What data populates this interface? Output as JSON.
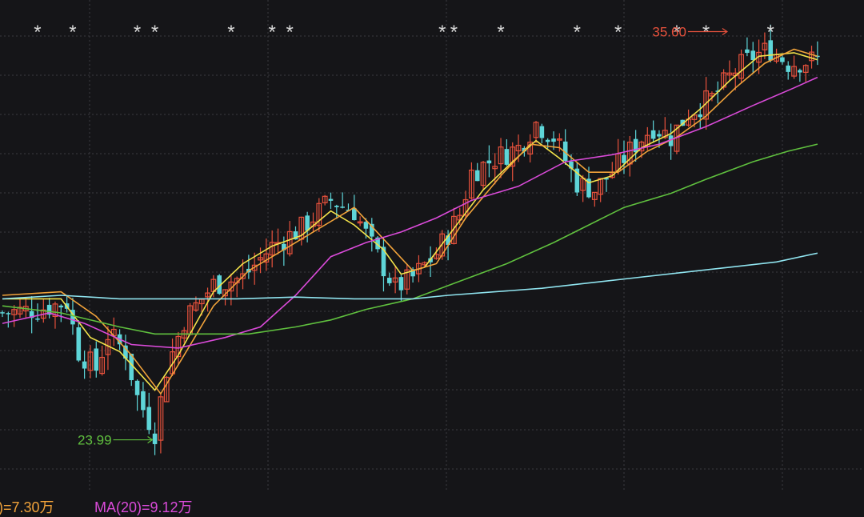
{
  "chart_data": {
    "type": "candlestick",
    "y_range": [
      22.5,
      36.5
    ],
    "grid": "dotted",
    "bar_count": 140,
    "colors": {
      "up": "#e6513c",
      "down": "#5ed5d8",
      "ma_yellow": "#f2e24a",
      "ma_orange": "#f0a23a",
      "ma_magenta": "#d94ad8",
      "ma_green": "#5fbf3e",
      "ma_cyan": "#8fe3ee",
      "star": "#d8d8d8",
      "high_label": "#e6513c",
      "low_label": "#5fbf3e"
    },
    "close_anchors": [
      [
        0,
        27.6
      ],
      [
        6,
        27.7
      ],
      [
        11,
        27.9
      ],
      [
        13,
        26.5
      ],
      [
        16,
        26.0
      ],
      [
        18,
        27.0
      ],
      [
        21,
        26.5
      ],
      [
        23,
        25.2
      ],
      [
        26,
        24.2
      ],
      [
        28,
        26.0
      ],
      [
        31,
        27.4
      ],
      [
        36,
        28.4
      ],
      [
        41,
        28.6
      ],
      [
        46,
        29.5
      ],
      [
        51,
        30.0
      ],
      [
        56,
        30.8
      ],
      [
        60,
        30.5
      ],
      [
        63,
        29.5
      ],
      [
        67,
        28.3
      ],
      [
        70,
        28.6
      ],
      [
        74,
        29.3
      ],
      [
        78,
        30.4
      ],
      [
        80,
        31.6
      ],
      [
        84,
        32.0
      ],
      [
        88,
        32.3
      ],
      [
        91,
        33.0
      ],
      [
        94,
        32.6
      ],
      [
        98,
        31.3
      ],
      [
        101,
        31.1
      ],
      [
        104,
        31.6
      ],
      [
        108,
        32.4
      ],
      [
        111,
        32.9
      ],
      [
        114,
        32.6
      ],
      [
        117,
        33.3
      ],
      [
        121,
        33.7
      ],
      [
        125,
        34.5
      ],
      [
        128,
        34.9
      ],
      [
        131,
        35.1
      ],
      [
        134,
        34.7
      ],
      [
        139,
        34.8
      ]
    ],
    "ma_lines": [
      {
        "color_key": "ma_yellow",
        "points": [
          [
            0,
            28.0
          ],
          [
            10,
            28.0
          ],
          [
            15,
            26.9
          ],
          [
            20,
            26.5
          ],
          [
            26,
            25.4
          ],
          [
            30,
            26.4
          ],
          [
            36,
            28.2
          ],
          [
            41,
            29.0
          ],
          [
            46,
            29.5
          ],
          [
            51,
            29.8
          ],
          [
            56,
            30.5
          ],
          [
            60,
            30.1
          ],
          [
            65,
            29.4
          ],
          [
            68,
            28.7
          ],
          [
            72,
            28.9
          ],
          [
            77,
            30.0
          ],
          [
            82,
            31.1
          ],
          [
            87,
            31.9
          ],
          [
            91,
            32.5
          ],
          [
            95,
            32.0
          ],
          [
            100,
            31.3
          ],
          [
            104,
            31.5
          ],
          [
            109,
            32.3
          ],
          [
            114,
            32.7
          ],
          [
            119,
            33.4
          ],
          [
            124,
            34.2
          ],
          [
            129,
            34.9
          ],
          [
            135,
            35.0
          ],
          [
            139,
            34.8
          ]
        ]
      },
      {
        "color_key": "ma_orange",
        "points": [
          [
            0,
            28.1
          ],
          [
            10,
            28.2
          ],
          [
            16,
            27.5
          ],
          [
            22,
            26.4
          ],
          [
            27,
            25.3
          ],
          [
            31,
            26.4
          ],
          [
            36,
            27.8
          ],
          [
            42,
            28.8
          ],
          [
            48,
            29.4
          ],
          [
            54,
            30.0
          ],
          [
            60,
            30.6
          ],
          [
            65,
            29.7
          ],
          [
            70,
            28.8
          ],
          [
            74,
            29.0
          ],
          [
            79,
            30.3
          ],
          [
            85,
            31.5
          ],
          [
            90,
            32.4
          ],
          [
            95,
            32.3
          ],
          [
            100,
            31.6
          ],
          [
            105,
            31.6
          ],
          [
            110,
            32.2
          ],
          [
            115,
            32.6
          ],
          [
            120,
            33.2
          ],
          [
            125,
            34.0
          ],
          [
            130,
            34.7
          ],
          [
            135,
            35.1
          ],
          [
            139,
            34.9
          ]
        ]
      },
      {
        "color_key": "ma_magenta",
        "points": [
          [
            0,
            27.3
          ],
          [
            8,
            27.6
          ],
          [
            14,
            27.3
          ],
          [
            22,
            26.7
          ],
          [
            30,
            26.6
          ],
          [
            38,
            26.9
          ],
          [
            44,
            27.2
          ],
          [
            50,
            28.1
          ],
          [
            56,
            29.2
          ],
          [
            62,
            29.6
          ],
          [
            68,
            29.9
          ],
          [
            74,
            30.3
          ],
          [
            80,
            30.8
          ],
          [
            88,
            31.2
          ],
          [
            96,
            31.9
          ],
          [
            104,
            32.1
          ],
          [
            112,
            32.4
          ],
          [
            120,
            32.9
          ],
          [
            128,
            33.5
          ],
          [
            135,
            34.0
          ],
          [
            139,
            34.3
          ]
        ]
      },
      {
        "color_key": "ma_green",
        "points": [
          [
            0,
            27.8
          ],
          [
            10,
            27.6
          ],
          [
            20,
            27.2
          ],
          [
            26,
            27.0
          ],
          [
            33,
            27.0
          ],
          [
            42,
            27.0
          ],
          [
            50,
            27.2
          ],
          [
            56,
            27.4
          ],
          [
            62,
            27.7
          ],
          [
            70,
            28.0
          ],
          [
            78,
            28.5
          ],
          [
            86,
            29.0
          ],
          [
            94,
            29.6
          ],
          [
            100,
            30.1
          ],
          [
            106,
            30.6
          ],
          [
            114,
            31.0
          ],
          [
            120,
            31.4
          ],
          [
            128,
            31.9
          ],
          [
            134,
            32.2
          ],
          [
            139,
            32.4
          ]
        ]
      },
      {
        "color_key": "ma_cyan",
        "points": [
          [
            0,
            28.0
          ],
          [
            10,
            28.1
          ],
          [
            20,
            28.0
          ],
          [
            30,
            28.0
          ],
          [
            40,
            28.0
          ],
          [
            50,
            28.05
          ],
          [
            60,
            28.0
          ],
          [
            70,
            28.0
          ],
          [
            76,
            28.1
          ],
          [
            84,
            28.2
          ],
          [
            92,
            28.3
          ],
          [
            100,
            28.45
          ],
          [
            108,
            28.6
          ],
          [
            116,
            28.75
          ],
          [
            124,
            28.9
          ],
          [
            132,
            29.05
          ],
          [
            139,
            29.3
          ]
        ]
      }
    ],
    "star_positions": [
      6,
      12,
      23,
      26,
      39,
      46,
      49,
      75,
      77,
      85,
      98,
      105,
      115,
      120,
      131
    ],
    "annotations": [
      {
        "text": "35.60",
        "bar": 124,
        "value": 35.6,
        "color_key": "high_label",
        "side": "left"
      },
      {
        "text": "23.99",
        "bar": 26,
        "value": 23.99,
        "color_key": "low_label",
        "side": "left"
      }
    ]
  },
  "volume_legend": {
    "ma10_label": ")=7.30万",
    "ma10_color": "#f0a23a",
    "ma20_label": "MA(20)=9.12万",
    "ma20_color": "#d94ad8"
  }
}
